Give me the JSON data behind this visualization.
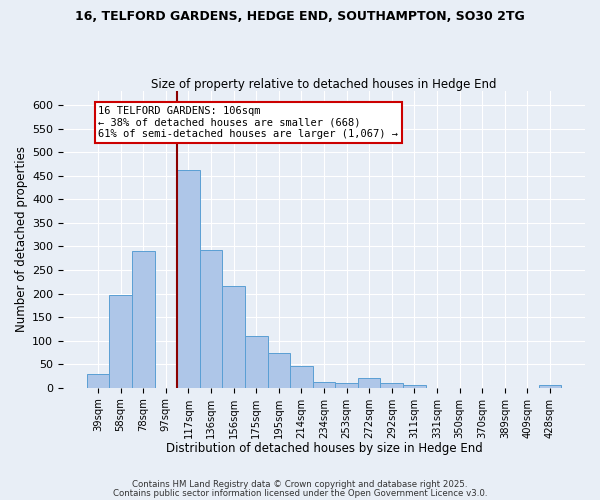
{
  "title1": "16, TELFORD GARDENS, HEDGE END, SOUTHAMPTON, SO30 2TG",
  "title2": "Size of property relative to detached houses in Hedge End",
  "xlabel": "Distribution of detached houses by size in Hedge End",
  "ylabel": "Number of detached properties",
  "bar_labels": [
    "39sqm",
    "58sqm",
    "78sqm",
    "97sqm",
    "117sqm",
    "136sqm",
    "156sqm",
    "175sqm",
    "195sqm",
    "214sqm",
    "234sqm",
    "253sqm",
    "272sqm",
    "292sqm",
    "311sqm",
    "331sqm",
    "350sqm",
    "370sqm",
    "389sqm",
    "409sqm",
    "428sqm"
  ],
  "bar_values": [
    30,
    197,
    290,
    0,
    462,
    292,
    215,
    110,
    74,
    47,
    13,
    10,
    20,
    9,
    5,
    0,
    0,
    0,
    0,
    0,
    5
  ],
  "bar_color": "#aec6e8",
  "bar_edgecolor": "#5a9fd4",
  "bg_color": "#e8eef6",
  "grid_color": "#ffffff",
  "vline_x": 4.0,
  "vline_color": "#8b0000",
  "annotation_text": "16 TELFORD GARDENS: 106sqm\n← 38% of detached houses are smaller (668)\n61% of semi-detached houses are larger (1,067) →",
  "annotation_box_color": "#ffffff",
  "annotation_box_edgecolor": "#cc0000",
  "ylim": [
    0,
    630
  ],
  "yticks": [
    0,
    50,
    100,
    150,
    200,
    250,
    300,
    350,
    400,
    450,
    500,
    550,
    600
  ],
  "footer1": "Contains HM Land Registry data © Crown copyright and database right 2025.",
  "footer2": "Contains public sector information licensed under the Open Government Licence v3.0.",
  "title_fontsize": 9,
  "subtitle_fontsize": 8.5
}
